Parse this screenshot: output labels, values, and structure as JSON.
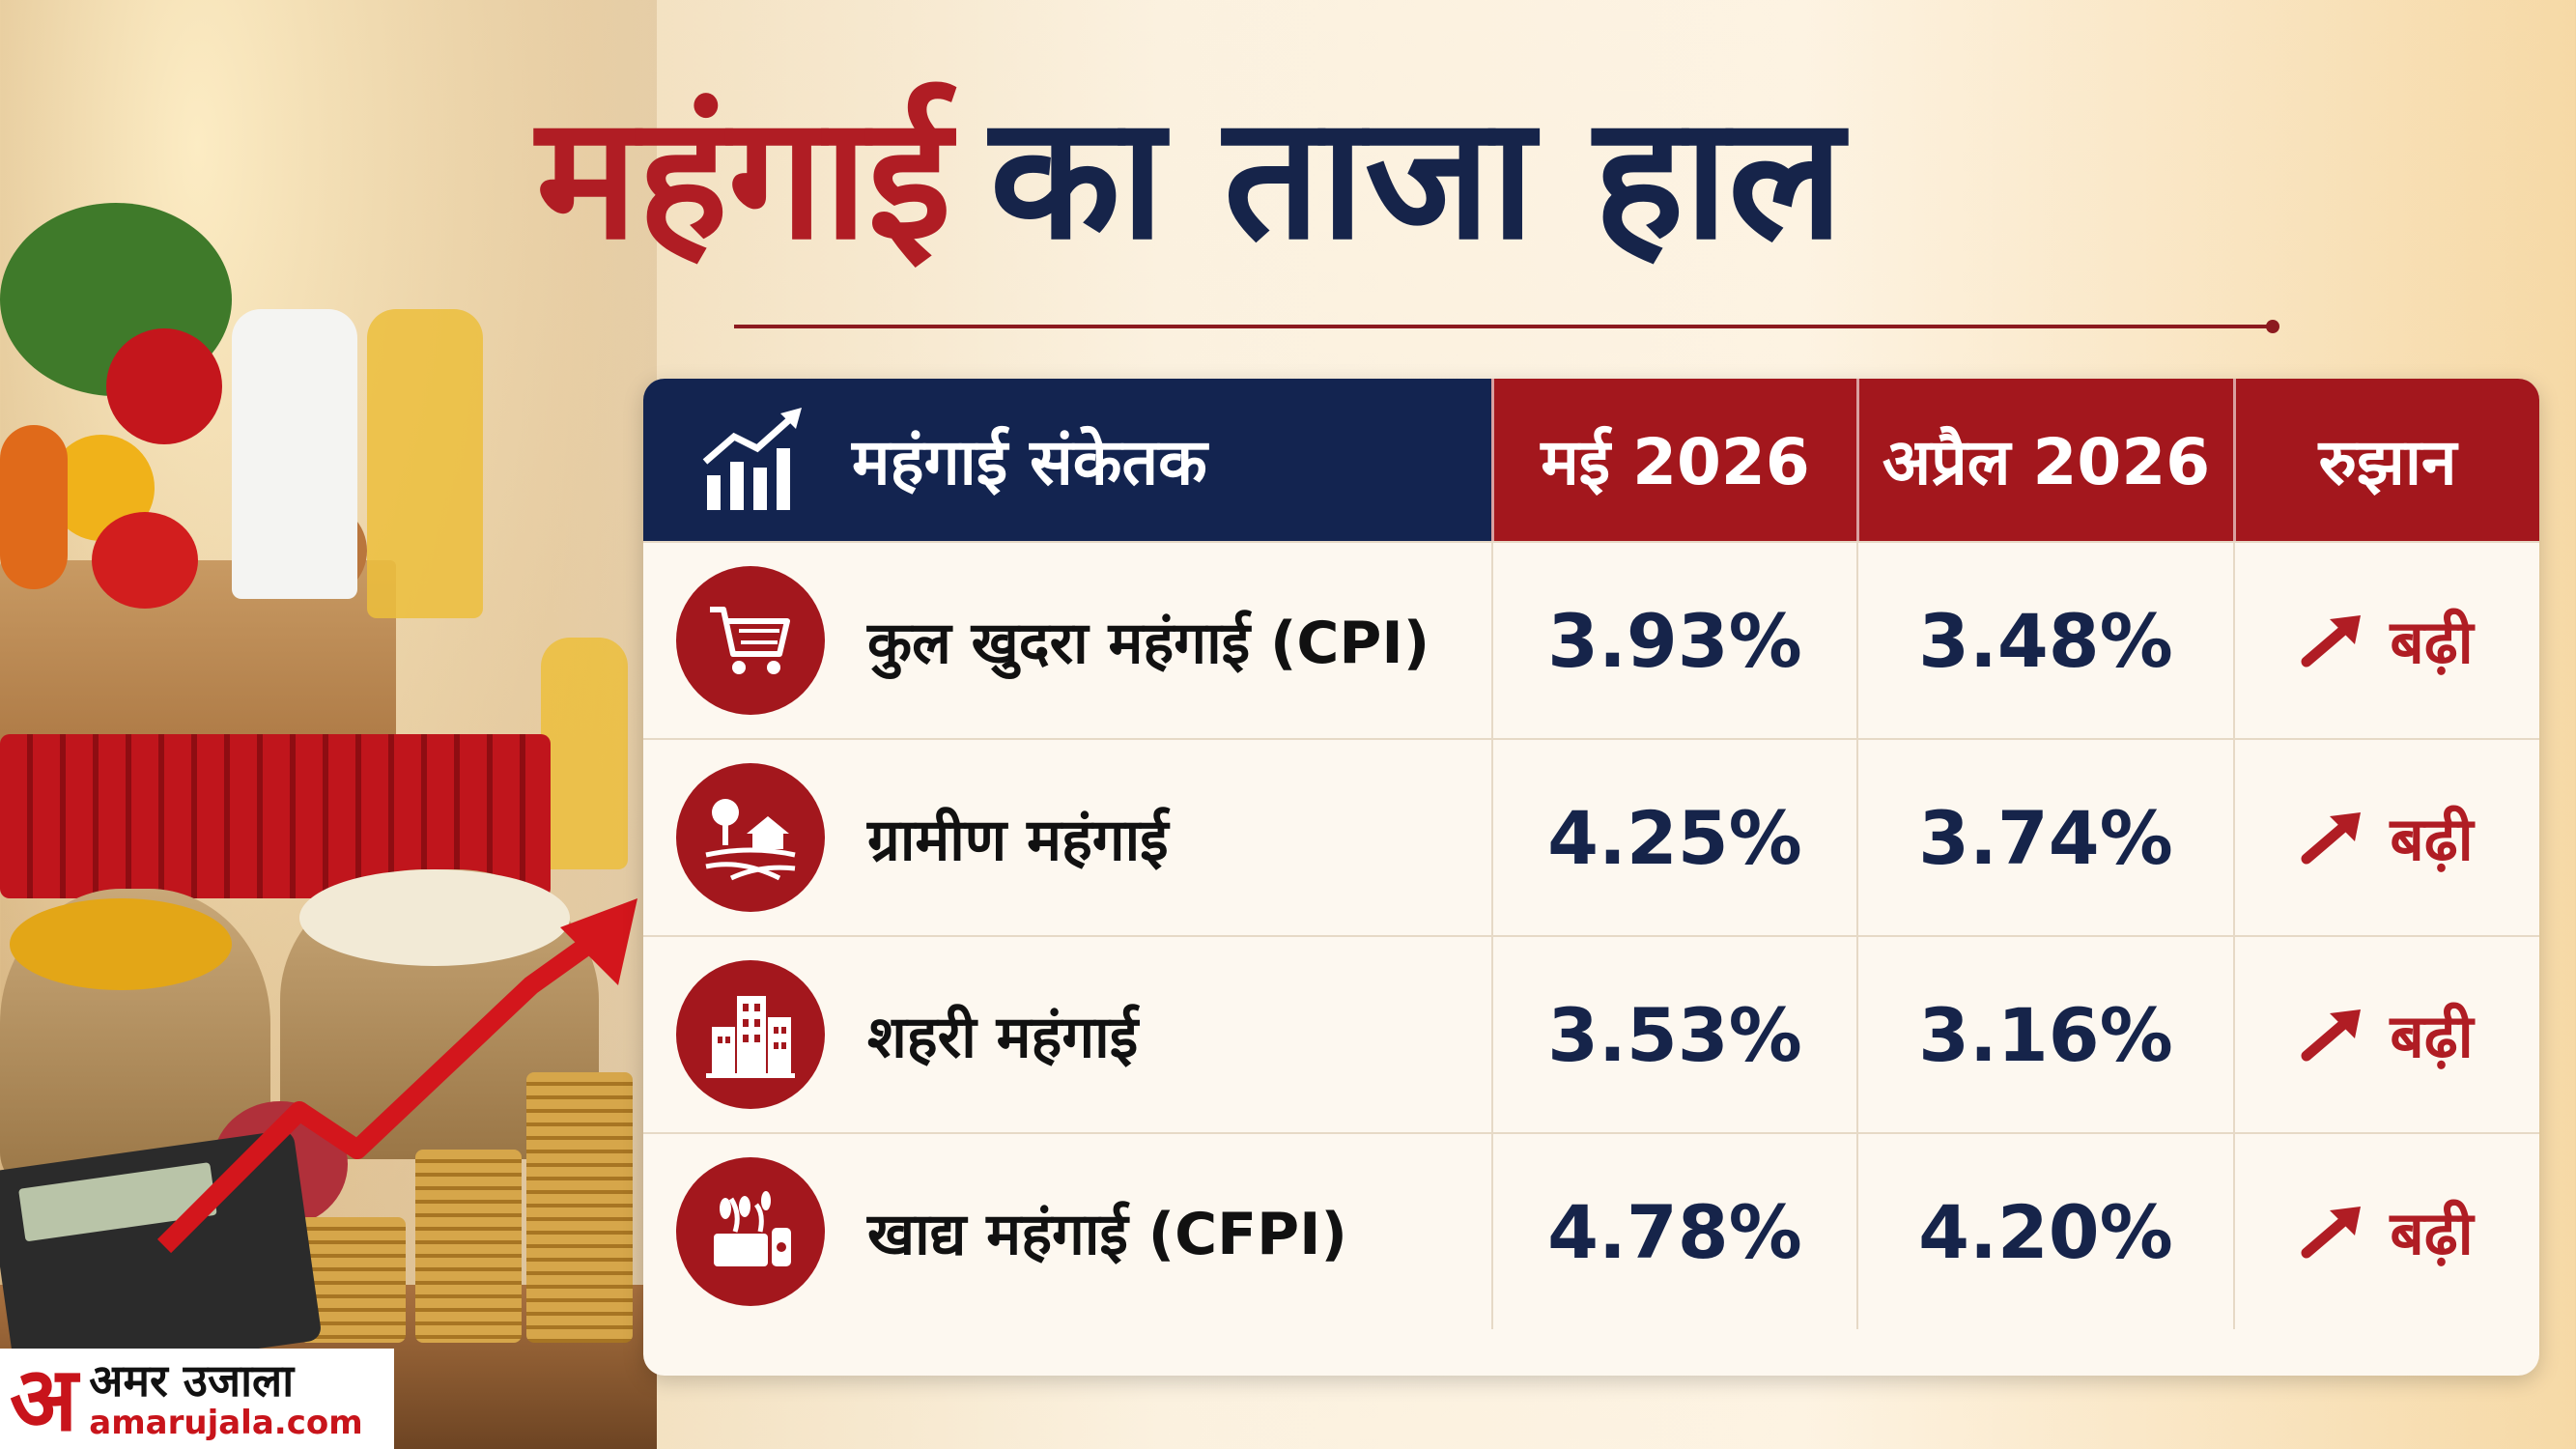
{
  "title": {
    "part1": "महंगाई",
    "part2": "का ताजा हाल"
  },
  "table": {
    "headers": {
      "indicator": "महंगाई संकेतक",
      "current": "मई 2026",
      "previous": "अप्रैल 2026",
      "trend": "रुझान"
    },
    "rows": [
      {
        "icon": "shopping-cart-icon",
        "label": "कुल खुदरा महंगाई (CPI)",
        "current": "3.93%",
        "previous": "3.48%",
        "trend": "बढ़ी"
      },
      {
        "icon": "rural-house-icon",
        "label": "ग्रामीण महंगाई",
        "current": "4.25%",
        "previous": "3.74%",
        "trend": "बढ़ी"
      },
      {
        "icon": "city-buildings-icon",
        "label": "शहरी महंगाई",
        "current": "3.53%",
        "previous": "3.16%",
        "trend": "बढ़ी"
      },
      {
        "icon": "food-bowl-icon",
        "label": "खाद्य महंगाई (CFPI)",
        "current": "4.78%",
        "previous": "4.20%",
        "trend": "बढ़ी"
      }
    ]
  },
  "logo": {
    "mark": "अ",
    "name": "अमर उजाला",
    "url": "amarujala.com"
  },
  "colors": {
    "accent_red": "#a3171d",
    "navy": "#132450",
    "value_text": "#16244a"
  }
}
